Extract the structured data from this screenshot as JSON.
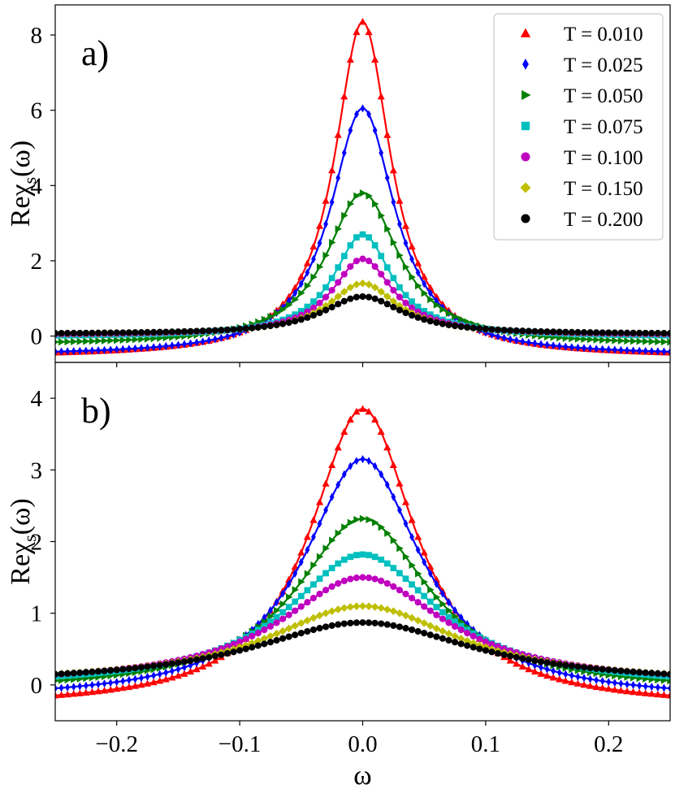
{
  "chart_data": [
    {
      "type": "line",
      "panel_label": "a)",
      "ylabel": "Reχs(ω)",
      "ylabel_parts": {
        "prefix": "Reχ",
        "sub": "s",
        "suffix": "(ω)"
      },
      "xlabel": "",
      "xlim": [
        -0.25,
        0.25
      ],
      "ylim": [
        -0.7,
        8.8
      ],
      "yticks": [
        0,
        2,
        4,
        6,
        8
      ],
      "yticklabels": [
        "0",
        "2",
        "4",
        "6",
        "8"
      ],
      "xticks": [
        -0.2,
        -0.1,
        0.0,
        0.1,
        0.2
      ],
      "xticklabels": [],
      "grid": false,
      "legend": "top-right",
      "series": [
        {
          "name": "T = 0.010",
          "peak": 8.35,
          "floor": -0.55,
          "width": 0.028,
          "color": "#ff0000",
          "marker": "triangle-up"
        },
        {
          "name": "T = 0.025",
          "peak": 6.05,
          "floor": -0.52,
          "width": 0.032,
          "color": "#0000ff",
          "marker": "thin-diamond"
        },
        {
          "name": "T = 0.050",
          "peak": 3.8,
          "floor": -0.24,
          "width": 0.036,
          "color": "#008000",
          "marker": "triangle-right"
        },
        {
          "name": "T = 0.075",
          "peak": 2.7,
          "floor": -0.02,
          "width": 0.029,
          "color": "#00bfbf",
          "marker": "square"
        },
        {
          "name": "T = 0.100",
          "peak": 2.05,
          "floor": 0.02,
          "width": 0.03,
          "color": "#bf00bf",
          "marker": "circle"
        },
        {
          "name": "T = 0.150",
          "peak": 1.4,
          "floor": 0.04,
          "width": 0.034,
          "color": "#bfbf00",
          "marker": "diamond"
        },
        {
          "name": "T = 0.200",
          "peak": 1.05,
          "floor": 0.05,
          "width": 0.04,
          "color": "#000000",
          "marker": "circle"
        }
      ]
    },
    {
      "type": "line",
      "panel_label": "b)",
      "ylabel": "Reχs(ω)",
      "ylabel_parts": {
        "prefix": "Reχ",
        "sub": "s",
        "suffix": "(ω)"
      },
      "xlabel": "ω",
      "xlim": [
        -0.25,
        0.25
      ],
      "ylim": [
        -0.5,
        4.5
      ],
      "yticks": [
        0,
        1,
        2,
        3,
        4
      ],
      "yticklabels": [
        "0",
        "1",
        "2",
        "3",
        "4"
      ],
      "xticks": [
        -0.2,
        -0.1,
        0.0,
        0.1,
        0.2
      ],
      "xticklabels": [
        "−0.2",
        "−0.1",
        "0.0",
        "0.1",
        "0.2"
      ],
      "grid": false,
      "legend": "none",
      "series": [
        {
          "name": "T = 0.010",
          "peak": 3.85,
          "floor": -0.32,
          "width": 0.052,
          "color": "#ff0000",
          "marker": "triangle-up"
        },
        {
          "name": "T = 0.025",
          "peak": 3.15,
          "floor": -0.22,
          "width": 0.058,
          "color": "#0000ff",
          "marker": "thin-diamond"
        },
        {
          "name": "T = 0.050",
          "peak": 2.32,
          "floor": -0.1,
          "width": 0.066,
          "color": "#008000",
          "marker": "triangle-right"
        },
        {
          "name": "T = 0.075",
          "peak": 1.82,
          "floor": -0.03,
          "width": 0.074,
          "color": "#00bfbf",
          "marker": "square"
        },
        {
          "name": "T = 0.100",
          "peak": 1.5,
          "floor": 0.0,
          "width": 0.082,
          "color": "#bf00bf",
          "marker": "circle"
        },
        {
          "name": "T = 0.150",
          "peak": 1.1,
          "floor": 0.02,
          "width": 0.094,
          "color": "#bfbf00",
          "marker": "diamond"
        },
        {
          "name": "T = 0.200",
          "peak": 0.87,
          "floor": 0.01,
          "width": 0.11,
          "color": "#000000",
          "marker": "circle"
        }
      ]
    }
  ]
}
